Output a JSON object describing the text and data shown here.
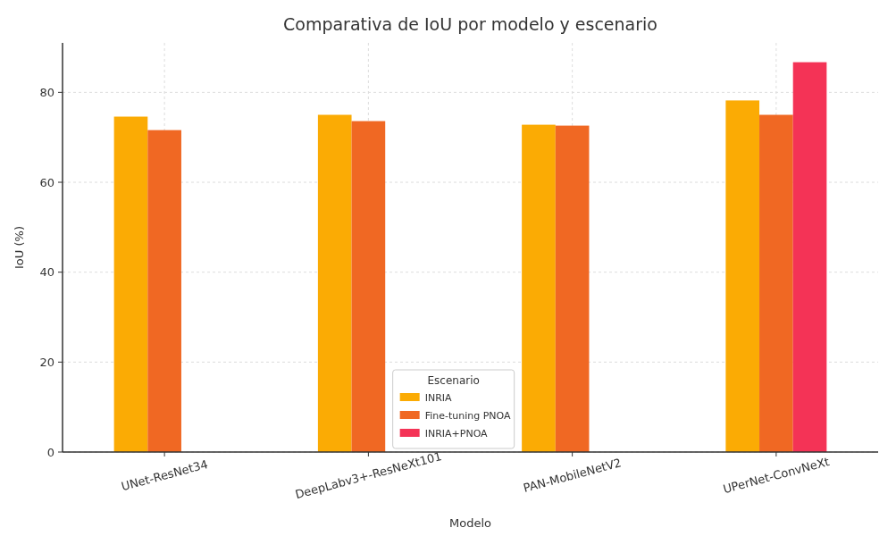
{
  "chart_data": {
    "type": "bar",
    "title": "Comparativa de IoU por modelo y escenario",
    "xlabel": "Modelo",
    "ylabel": "IoU (%)",
    "legend_title": "Escenario",
    "categories": [
      "UNet-ResNet34",
      "DeepLabv3+-ResNeXt101",
      "PAN-MobileNetV2",
      "UPerNet-ConvNeXt"
    ],
    "series": [
      {
        "name": "INRIA",
        "color": "#fbab04",
        "values": [
          74.6,
          75.0,
          72.8,
          78.2
        ]
      },
      {
        "name": "Fine-tuning PNOA",
        "color": "#f06823",
        "values": [
          71.6,
          73.6,
          72.6,
          75.0
        ]
      },
      {
        "name": "INRIA+PNOA",
        "color": "#f43356",
        "values": [
          null,
          null,
          null,
          86.7
        ]
      }
    ],
    "ylim": [
      0,
      91
    ],
    "yticks": [
      0,
      20,
      40,
      60,
      80
    ],
    "grid": true,
    "legend": "bottom"
  }
}
